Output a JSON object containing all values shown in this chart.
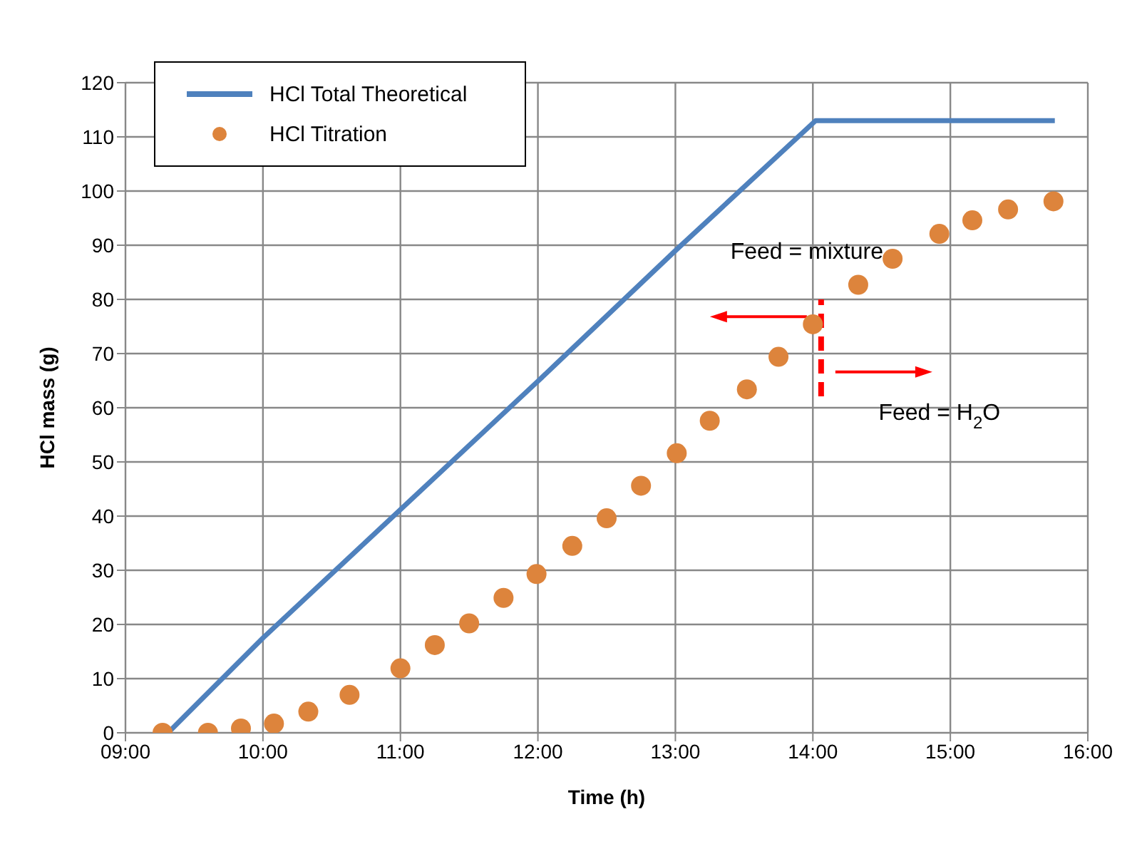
{
  "chart_data": {
    "type": "line",
    "xlabel": "Time (h)",
    "ylabel": "HCl mass (g)",
    "xlim": [
      9,
      16
    ],
    "xticks": [
      {
        "value": 9,
        "label": "09:00"
      },
      {
        "value": 10,
        "label": "10:00"
      },
      {
        "value": 11,
        "label": "11:00"
      },
      {
        "value": 12,
        "label": "12:00"
      },
      {
        "value": 13,
        "label": "13:00"
      },
      {
        "value": 14,
        "label": "14:00"
      },
      {
        "value": 15,
        "label": "15:00"
      },
      {
        "value": 16,
        "label": "16:00"
      }
    ],
    "ylim": [
      0,
      120
    ],
    "yticks": [
      0,
      10,
      20,
      30,
      40,
      50,
      60,
      70,
      80,
      90,
      100,
      110,
      120
    ],
    "grid": true,
    "legend": "top left",
    "series": [
      {
        "name": "HCl Total Theoretical",
        "color": "#4f81bd",
        "marker": "none",
        "line_style": "solid",
        "x": [
          9.31,
          10,
          12,
          13,
          14.02,
          15.76
        ],
        "values": [
          0,
          17.5,
          64.9,
          89,
          113,
          113
        ]
      },
      {
        "name": "HCl Titration",
        "type": "scatter",
        "color": "#dd843c",
        "marker": "circle",
        "x": [
          9.27,
          9.6,
          9.84,
          10.08,
          10.33,
          10.63,
          11,
          11.25,
          11.5,
          11.75,
          11.99,
          12.25,
          12.5,
          12.75,
          13.01,
          13.25,
          13.52,
          13.75,
          14,
          14.33,
          14.58,
          14.92,
          15.16,
          15.42,
          15.75
        ],
        "values": [
          0,
          0,
          0.8,
          1.7,
          3.9,
          7,
          11.9,
          16.2,
          20.2,
          24.9,
          29.3,
          34.5,
          39.6,
          45.6,
          51.6,
          57.6,
          63.4,
          69.4,
          75.4,
          82.7,
          87.5,
          92.1,
          94.6,
          96.6,
          98.1
        ]
      }
    ],
    "ref_lines": [
      {
        "axis": "x",
        "value": 14.06,
        "color": "#ff0000",
        "line_style": "dashed"
      }
    ],
    "annotations": [
      "Feed = mixture",
      "Feed = H$_{2}$O"
    ]
  }
}
